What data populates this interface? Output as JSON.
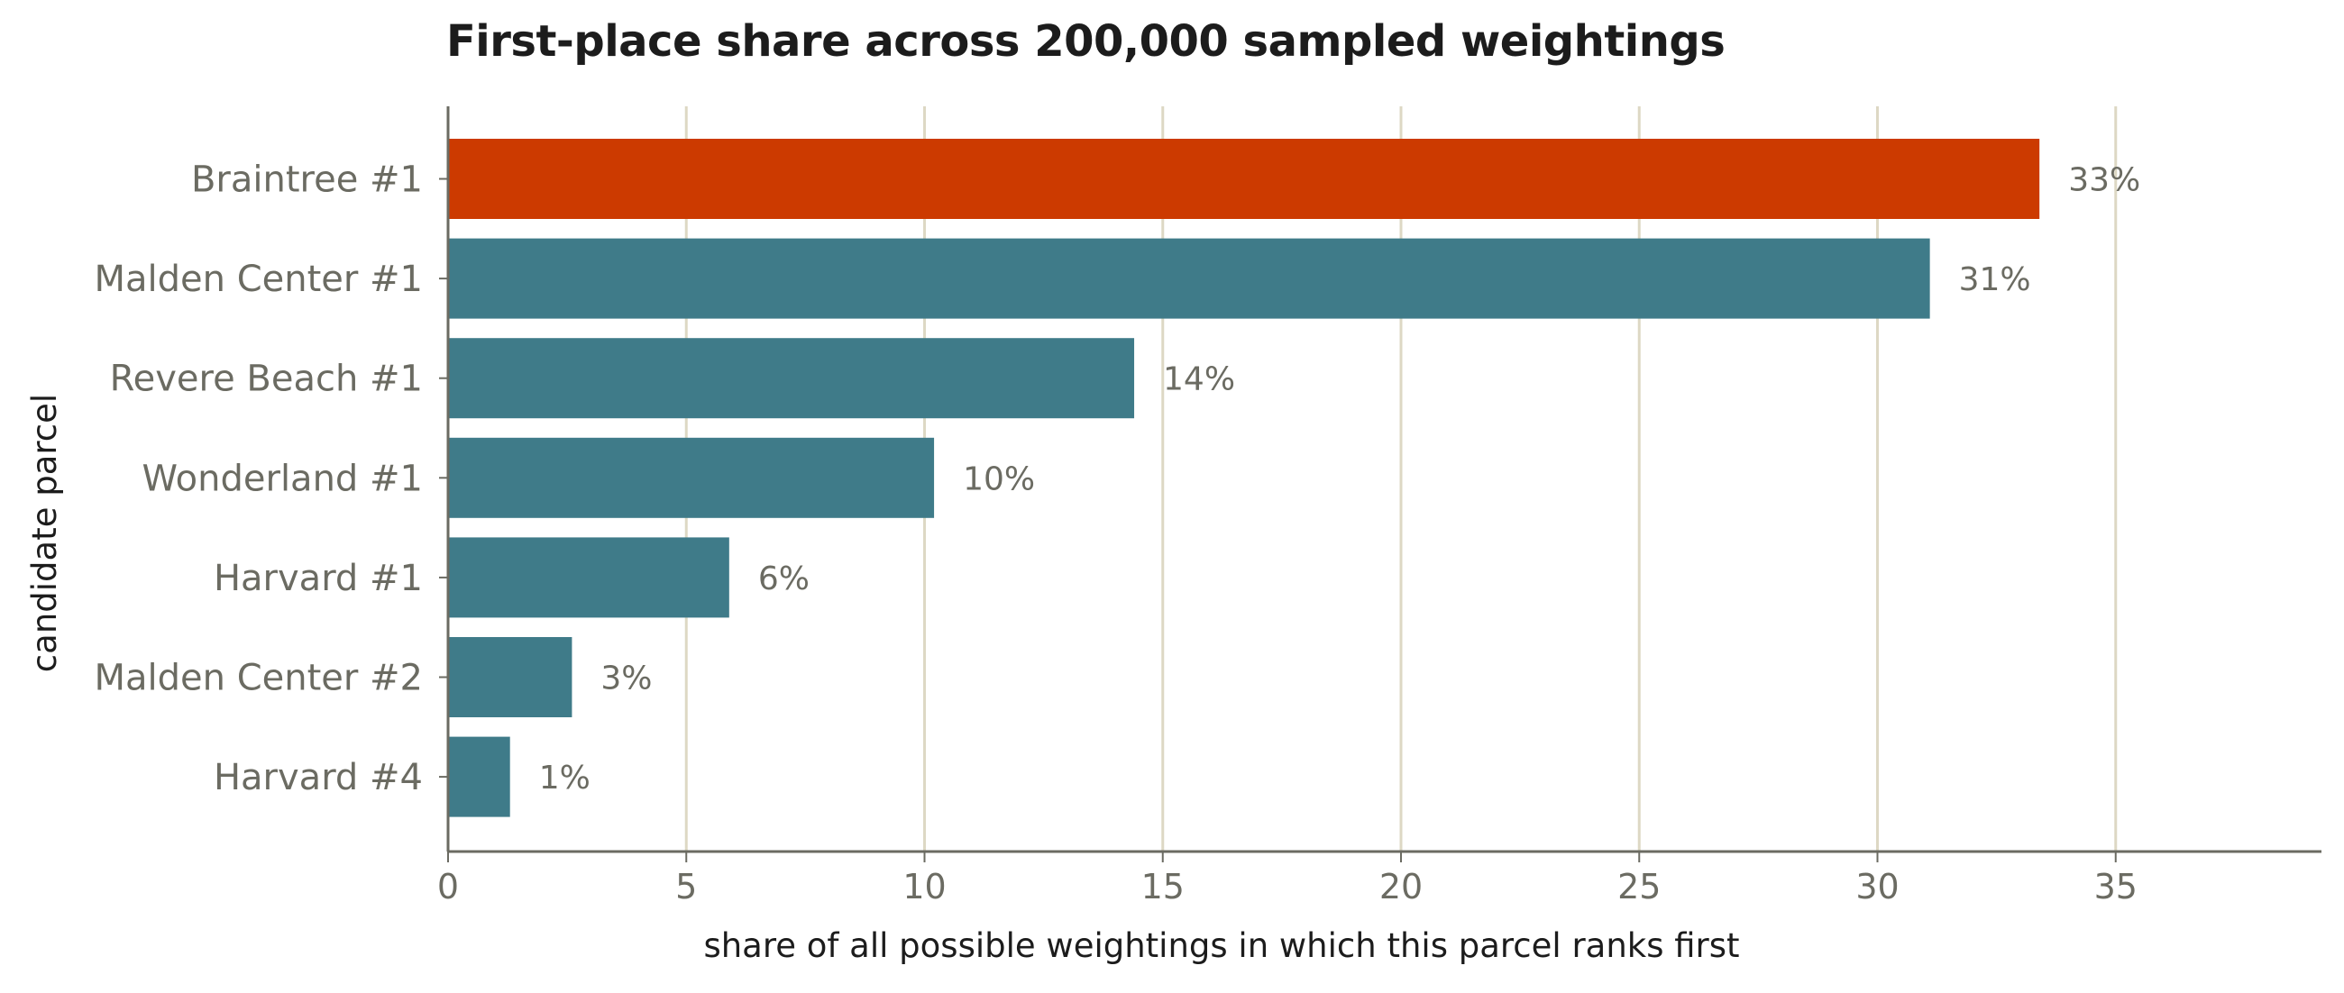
{
  "chart_data": {
    "type": "bar",
    "orientation": "horizontal",
    "title": "First-place share across 200,000 sampled weightings",
    "xlabel": "share of all possible weightings in which this parcel ranks first",
    "ylabel": "candidate parcel",
    "categories": [
      "Braintree #1",
      "Malden Center #1",
      "Revere Beach #1",
      "Wonderland #1",
      "Harvard #1",
      "Malden Center #2",
      "Harvard #4"
    ],
    "values": [
      33.4,
      31.1,
      14.4,
      10.2,
      5.9,
      2.6,
      1.3
    ],
    "value_labels": [
      "33%",
      "31%",
      "14%",
      "10%",
      "6%",
      "3%",
      "1%"
    ],
    "xlim": [
      0,
      39.5
    ],
    "xticks": [
      0,
      5,
      10,
      15,
      20,
      25,
      30,
      35
    ],
    "xtick_labels": [
      "0",
      "5",
      "10",
      "15",
      "20",
      "25",
      "30",
      "35"
    ],
    "grid": "vertical",
    "colors": {
      "highlight": "#cc3a00",
      "default": "#3f7b89",
      "grid": "#ddd8c4",
      "axis": "#6b6b62"
    },
    "highlight_index": 0
  }
}
